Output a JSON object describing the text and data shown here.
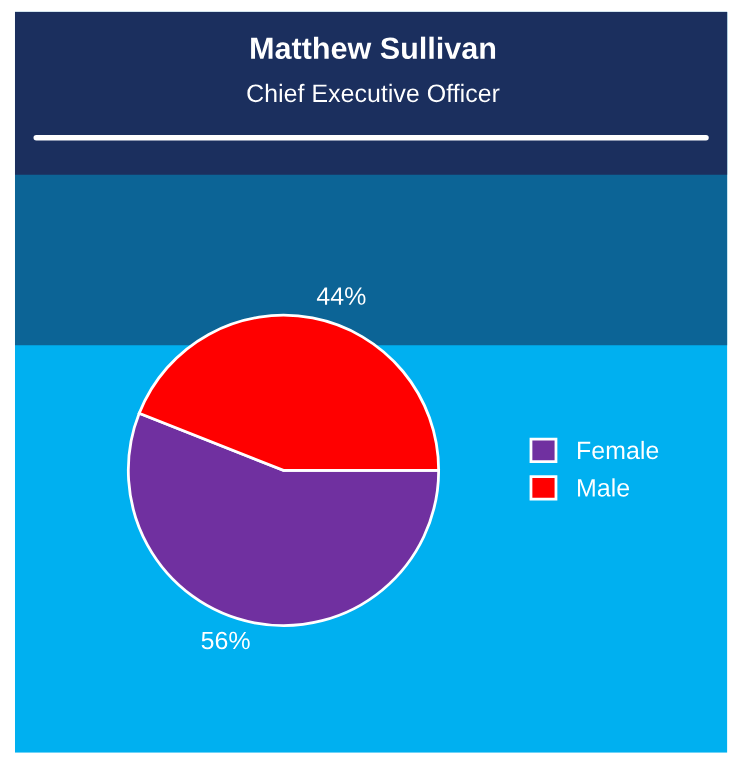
{
  "chart_data": {
    "type": "pie",
    "title": "Matthew Sullivan",
    "subtitle": "Chief Executive Officer",
    "categories": [
      "Female",
      "Male"
    ],
    "values": [
      56,
      44
    ],
    "colors": [
      "#7030a0",
      "#ff0000"
    ],
    "value_labels": [
      "56%",
      "44%"
    ],
    "legend": "right"
  }
}
